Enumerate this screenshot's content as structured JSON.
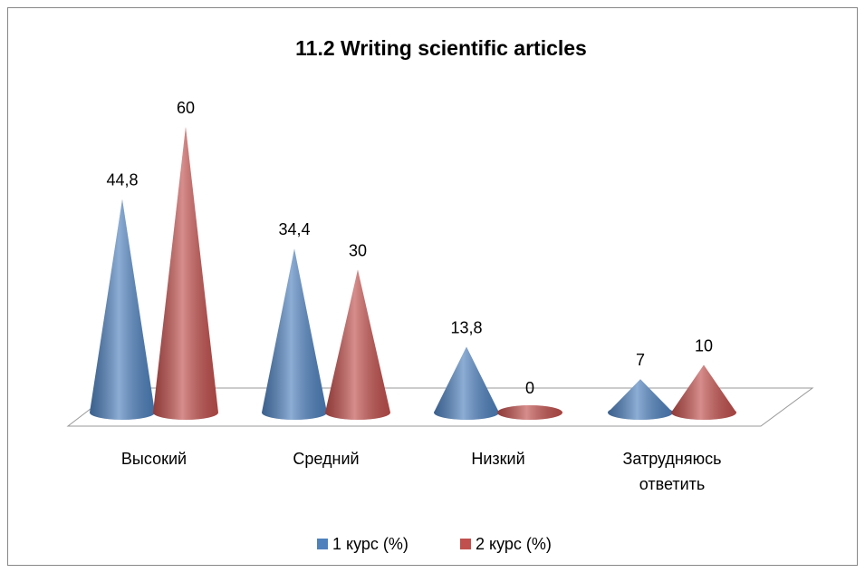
{
  "chart_data": {
    "type": "cone",
    "title": "11.2 Writing scientific articles",
    "categories": [
      "Высокий",
      "Средний",
      "Низкий",
      "Затрудняюсь ответить"
    ],
    "series": [
      {
        "name": "1 курс (%)",
        "color": "#4f81bd",
        "values": [
          44.8,
          34.4,
          13.8,
          7
        ],
        "value_labels": [
          "44,8",
          "34,4",
          "13,8",
          "7"
        ]
      },
      {
        "name": "2 курс (%)",
        "color": "#c0504d",
        "values": [
          60,
          30,
          0,
          10
        ],
        "value_labels": [
          "60",
          "30",
          "0",
          "10"
        ]
      }
    ],
    "legend": "bottom"
  }
}
